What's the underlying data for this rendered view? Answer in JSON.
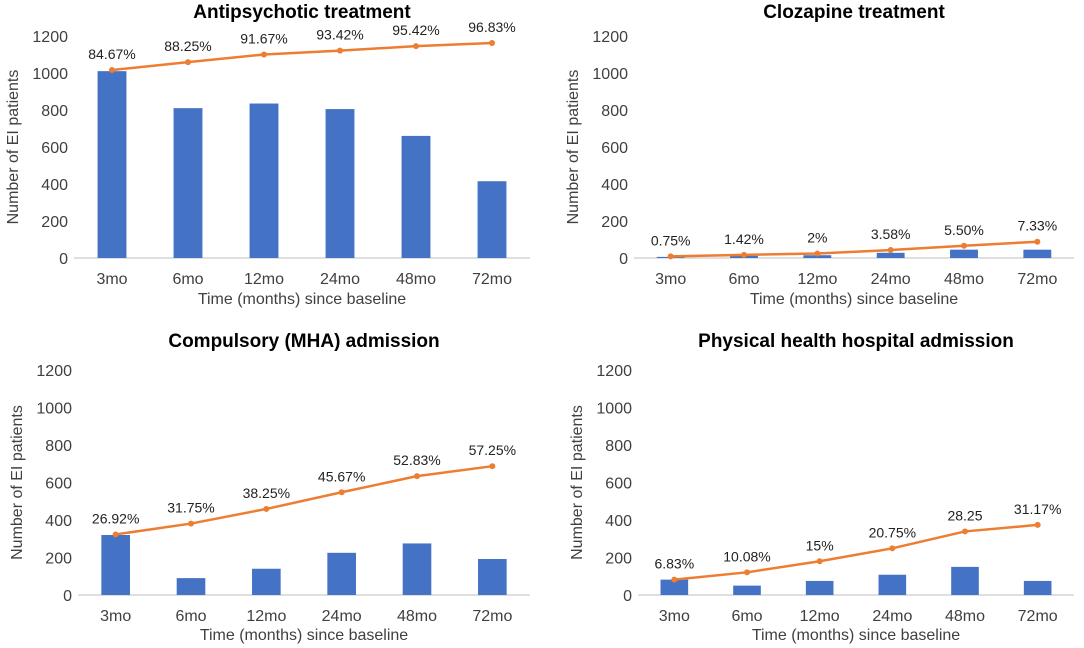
{
  "chart_data": [
    {
      "type": "bar+line",
      "title": "Antipsychotic treatment",
      "xlabel": "Time (months) since baseline",
      "ylabel": "Number of EI patients",
      "ylim": [
        0,
        1200
      ],
      "yticks": [
        "0",
        "200",
        "400",
        "600",
        "800",
        "1000",
        "1200"
      ],
      "categories": [
        "3mo",
        "6mo",
        "12mo",
        "24mo",
        "48mo",
        "72mo"
      ],
      "bar_values": [
        1010,
        810,
        835,
        805,
        660,
        415
      ],
      "line_values": [
        1016,
        1059,
        1100,
        1121,
        1145,
        1162
      ],
      "line_labels": [
        "84.67%",
        "88.25%",
        "91.67%",
        "93.42%",
        "95.42%",
        "96.83%"
      ]
    },
    {
      "type": "bar+line",
      "title": "Clozapine treatment",
      "xlabel": "Time (months) since baseline",
      "ylabel": "Number of EI patients",
      "ylim": [
        0,
        1200
      ],
      "yticks": [
        "0",
        "200",
        "400",
        "600",
        "800",
        "1000",
        "1200"
      ],
      "categories": [
        "3mo",
        "6mo",
        "12mo",
        "24mo",
        "48mo",
        "72mo"
      ],
      "bar_values": [
        6,
        12,
        15,
        28,
        45,
        45
      ],
      "line_values": [
        9,
        17,
        24,
        43,
        66,
        88
      ],
      "line_labels": [
        "0.75%",
        "1.42%",
        "2%",
        "3.58%",
        "5.50%",
        "7.33%"
      ]
    },
    {
      "type": "bar+line",
      "title": "Compulsory (MHA) admission",
      "xlabel": "Time (months) since baseline",
      "ylabel": "Number of EI patients",
      "ylim": [
        0,
        1200
      ],
      "yticks": [
        "0",
        "200",
        "400",
        "600",
        "800",
        "1000",
        "1200"
      ],
      "categories": [
        "3mo",
        "6mo",
        "12mo",
        "24mo",
        "48mo",
        "72mo"
      ],
      "bar_values": [
        320,
        90,
        140,
        225,
        275,
        192
      ],
      "line_values": [
        323,
        381,
        459,
        548,
        634,
        687
      ],
      "line_labels": [
        "26.92%",
        "31.75%",
        "38.25%",
        "45.67%",
        "52.83%",
        "57.25%"
      ]
    },
    {
      "type": "bar+line",
      "title": "Physical health hospital admission",
      "xlabel": "Time (months) since baseline",
      "ylabel": "Number of EI patients",
      "ylim": [
        0,
        1200
      ],
      "yticks": [
        "0",
        "200",
        "400",
        "600",
        "800",
        "1000",
        "1200"
      ],
      "categories": [
        "3mo",
        "6mo",
        "12mo",
        "24mo",
        "48mo",
        "72mo"
      ],
      "bar_values": [
        82,
        50,
        75,
        108,
        150,
        75
      ],
      "line_values": [
        82,
        121,
        180,
        249,
        339,
        374
      ],
      "line_labels": [
        "6.83%",
        "10.08%",
        "15%",
        "20.75%",
        "28.25",
        "31.17%"
      ]
    }
  ]
}
